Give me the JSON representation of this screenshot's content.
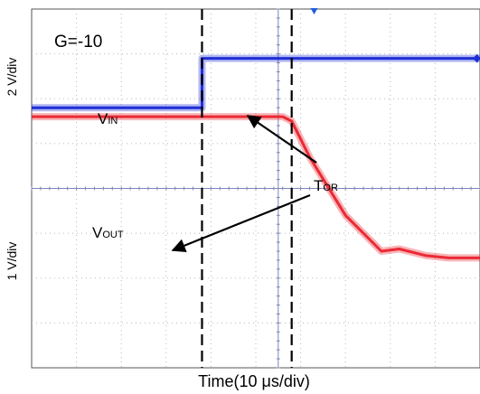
{
  "chart_data": {
    "type": "line",
    "annotation_gain": "G=-10",
    "xlabel": "Time(10 μs/div)",
    "ylabel_upper": "2 V/div",
    "ylabel_lower": "1 V/div",
    "x_divisions": 10,
    "y_divisions": 8,
    "grid": true,
    "cursors_x_div": [
      3.8,
      5.8
    ],
    "trigger_x_div": 6.3,
    "series": [
      {
        "name_main": "V",
        "name_sub": "IN",
        "color": "#1f2fd6",
        "x_div": [
          0,
          3.8,
          3.8,
          10
        ],
        "y_div": [
          5.8,
          5.8,
          6.9,
          6.9
        ]
      },
      {
        "name_main": "V",
        "name_sub": "OUT",
        "color": "#ea2a35",
        "x_div": [
          0,
          5.0,
          5.6,
          5.8,
          6.2,
          7.0,
          7.8,
          8.2,
          8.8,
          9.3,
          10
        ],
        "y_div": [
          5.6,
          5.6,
          5.6,
          5.5,
          4.7,
          3.4,
          2.6,
          2.65,
          2.5,
          2.45,
          2.45
        ]
      }
    ],
    "annotations": [
      {
        "text_main": "T",
        "text_sub": "OR"
      }
    ]
  }
}
